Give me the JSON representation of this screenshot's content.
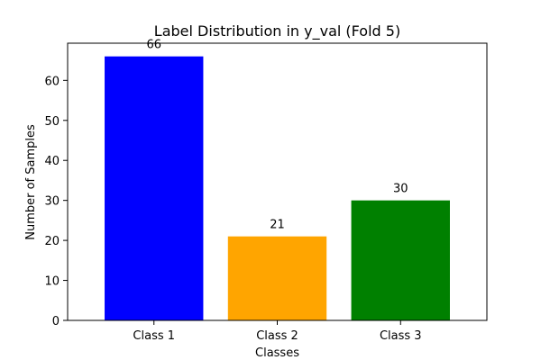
{
  "chart_data": {
    "type": "bar",
    "title": "Label Distribution in y_val (Fold 5)",
    "xlabel": "Classes",
    "ylabel": "Number of Samples",
    "categories": [
      "Class 1",
      "Class 2",
      "Class 3"
    ],
    "values": [
      66,
      21,
      30
    ],
    "value_labels": [
      "66",
      "21",
      "30"
    ],
    "bar_colors": [
      "#0000ff",
      "#ffa500",
      "#008000"
    ],
    "ylim": [
      0,
      69.3
    ],
    "yticks": [
      0,
      10,
      20,
      30,
      40,
      50,
      60
    ],
    "grid": false,
    "legend": "none"
  }
}
